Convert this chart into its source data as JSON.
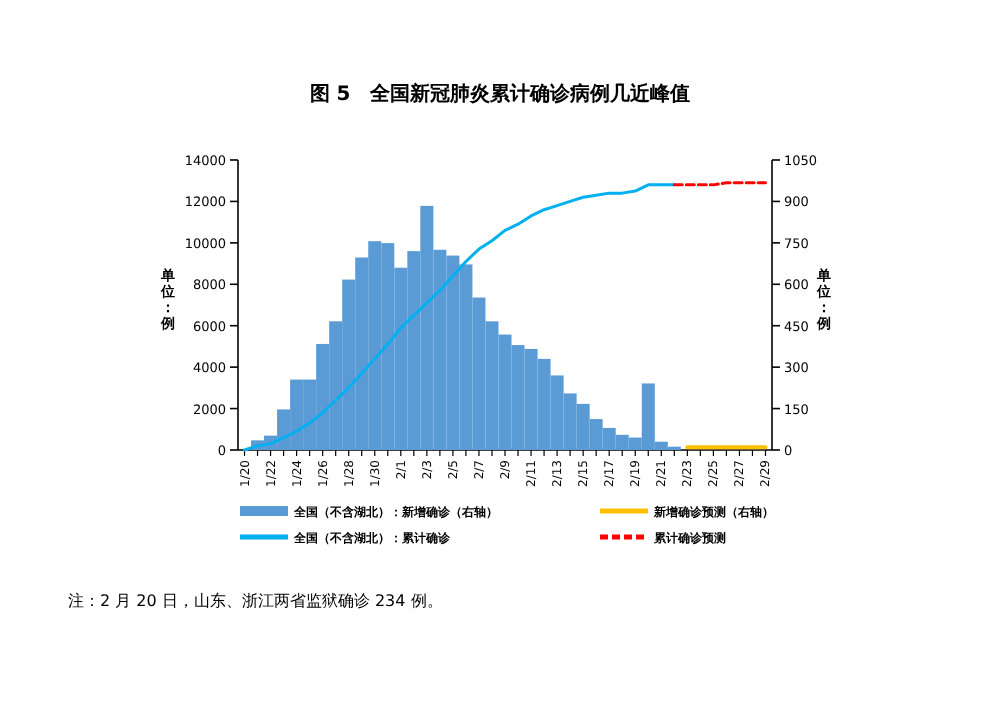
{
  "chart_data": {
    "type": "bar",
    "title": "图 5　全国新冠肺炎累计确诊病例几近峰值",
    "categories": [
      "1/20",
      null,
      "1/22",
      null,
      "1/24",
      null,
      "1/26",
      null,
      "1/28",
      null,
      "1/30",
      null,
      "2/1",
      null,
      "2/3",
      null,
      "2/5",
      null,
      "2/7",
      null,
      "2/9",
      null,
      "2/11",
      null,
      "2/13",
      null,
      "2/15",
      null,
      "2/17",
      null,
      "2/19",
      null,
      "2/21",
      null,
      "2/23",
      null,
      "2/25",
      null,
      "2/27",
      null,
      "2/29"
    ],
    "series": [
      {
        "name": "全国（不含湖北）：新增确诊（右轴）",
        "axis": "y2",
        "color": "#5b9bd5",
        "values": [
          null,
          35,
          52,
          147,
          255,
          255,
          384,
          466,
          617,
          697,
          756,
          749,
          660,
          720,
          884,
          725,
          704,
          672,
          552,
          466,
          418,
          380,
          366,
          330,
          270,
          205,
          167,
          112,
          80,
          55,
          45,
          241,
          30,
          12,
          null,
          null,
          null,
          null,
          null,
          null,
          null
        ]
      },
      {
        "name": "新增确诊预测（右轴）",
        "type": "line",
        "axis": "y2",
        "color": "#ffc000",
        "values": [
          null,
          null,
          null,
          null,
          null,
          null,
          null,
          null,
          null,
          null,
          null,
          null,
          null,
          null,
          null,
          null,
          null,
          null,
          null,
          null,
          null,
          null,
          null,
          null,
          null,
          null,
          null,
          null,
          null,
          null,
          null,
          null,
          null,
          null,
          10,
          10,
          10,
          10,
          10,
          10,
          10
        ]
      },
      {
        "name": "全国（不含湖北）：累计确诊",
        "type": "line",
        "axis": "y",
        "color": "#00b0f0",
        "values": [
          0,
          200,
          300,
          600,
          900,
          1300,
          1800,
          2400,
          3000,
          3700,
          4400,
          5100,
          5900,
          6500,
          7100,
          7700,
          8400,
          9100,
          9700,
          10100,
          10600,
          10900,
          11300,
          11600,
          11800,
          12000,
          12200,
          12300,
          12400,
          12400,
          12500,
          12800,
          12800,
          12800,
          null,
          null,
          null,
          null,
          null,
          null,
          null
        ]
      },
      {
        "name": "累计确诊预测",
        "type": "line",
        "axis": "y",
        "color": "#ff0000",
        "line_style": "dashed",
        "values": [
          null,
          null,
          null,
          null,
          null,
          null,
          null,
          null,
          null,
          null,
          null,
          null,
          null,
          null,
          null,
          null,
          null,
          null,
          null,
          null,
          null,
          null,
          null,
          null,
          null,
          null,
          null,
          null,
          null,
          null,
          null,
          null,
          null,
          12800,
          12800,
          12800,
          12800,
          12900,
          12900,
          12900,
          12900
        ]
      }
    ],
    "ylim": [
      0,
      14000
    ],
    "yticks": [
      0,
      2000,
      4000,
      6000,
      8000,
      10000,
      12000,
      14000
    ],
    "y2lim": [
      0,
      1050
    ],
    "y2ticks": [
      0,
      150,
      300,
      450,
      600,
      750,
      900,
      1050
    ],
    "legend": "bottom",
    "grid": false,
    "annotations": [
      "注：2 月 20 日，山东、浙江两省监狱确诊 234 例。",
      "单位：例",
      "单位：例"
    ]
  }
}
